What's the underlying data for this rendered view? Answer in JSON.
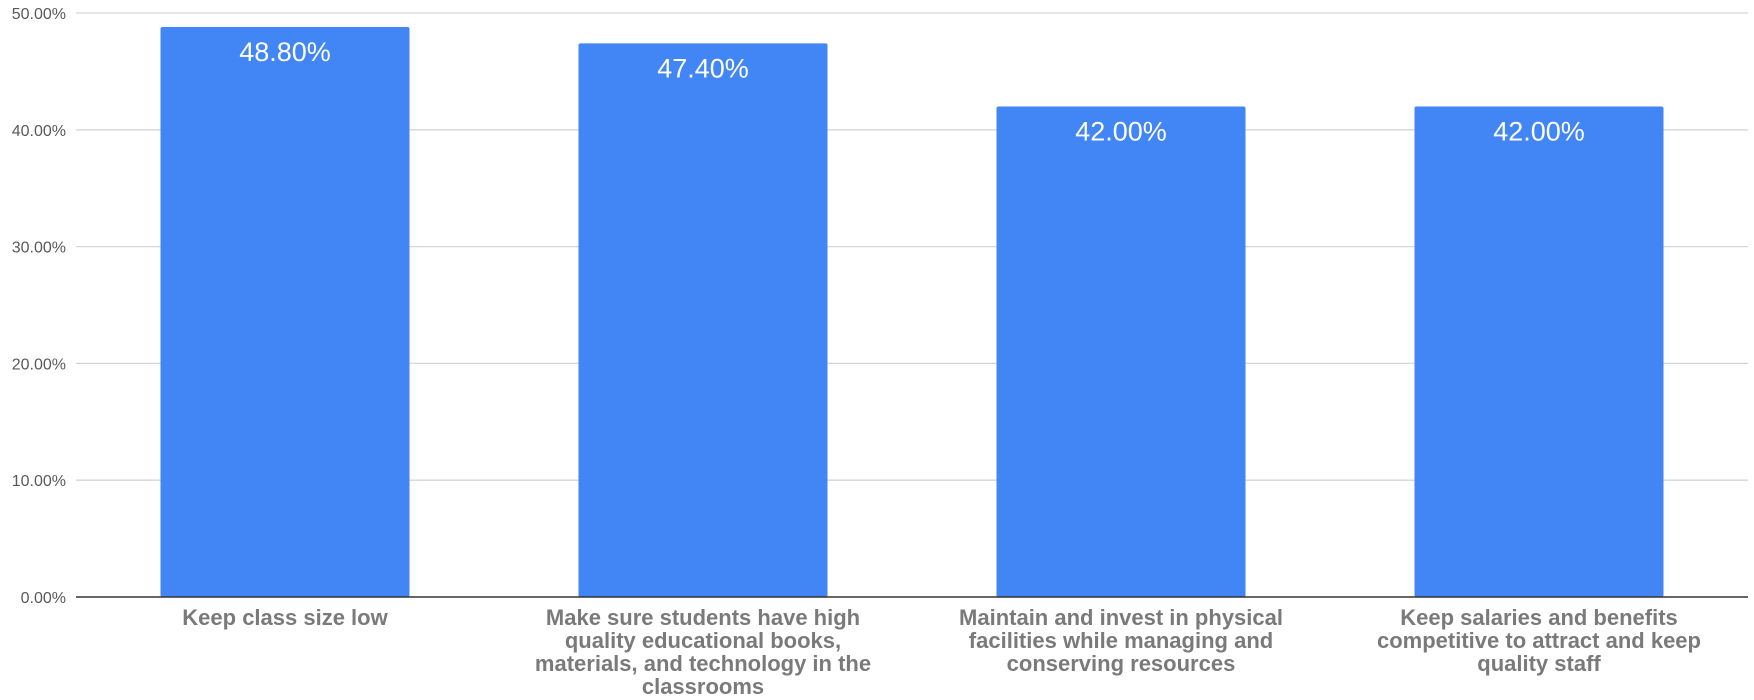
{
  "chart_data": {
    "type": "bar",
    "title": "",
    "xlabel": "",
    "ylabel": "",
    "categories": [
      [
        "Keep class size low"
      ],
      [
        "Make sure students have high",
        "quality educational books,",
        "materials, and technology in the",
        "classrooms"
      ],
      [
        "Maintain and invest in physical",
        "facilities while managing and",
        "conserving resources"
      ],
      [
        "Keep salaries and benefits",
        "competitive to attract and keep",
        "quality staff"
      ]
    ],
    "values": [
      48.8,
      47.4,
      42.0,
      42.0
    ],
    "data_labels": [
      "48.80%",
      "47.40%",
      "42.00%",
      "42.00%"
    ],
    "ylim": [
      0,
      50
    ],
    "yticks": [
      0,
      10,
      20,
      30,
      40,
      50
    ],
    "ytick_labels": [
      "0.00%",
      "10.00%",
      "20.00%",
      "30.00%",
      "40.00%",
      "50.00%"
    ],
    "grid": true,
    "legend": "none",
    "colors": {
      "bar": "#4285f4",
      "grid": "#d6d6d6",
      "axis": "#333333",
      "tick_text": "#595959",
      "category_text": "#7a7a7a",
      "data_label_text": "#ffffff"
    }
  }
}
